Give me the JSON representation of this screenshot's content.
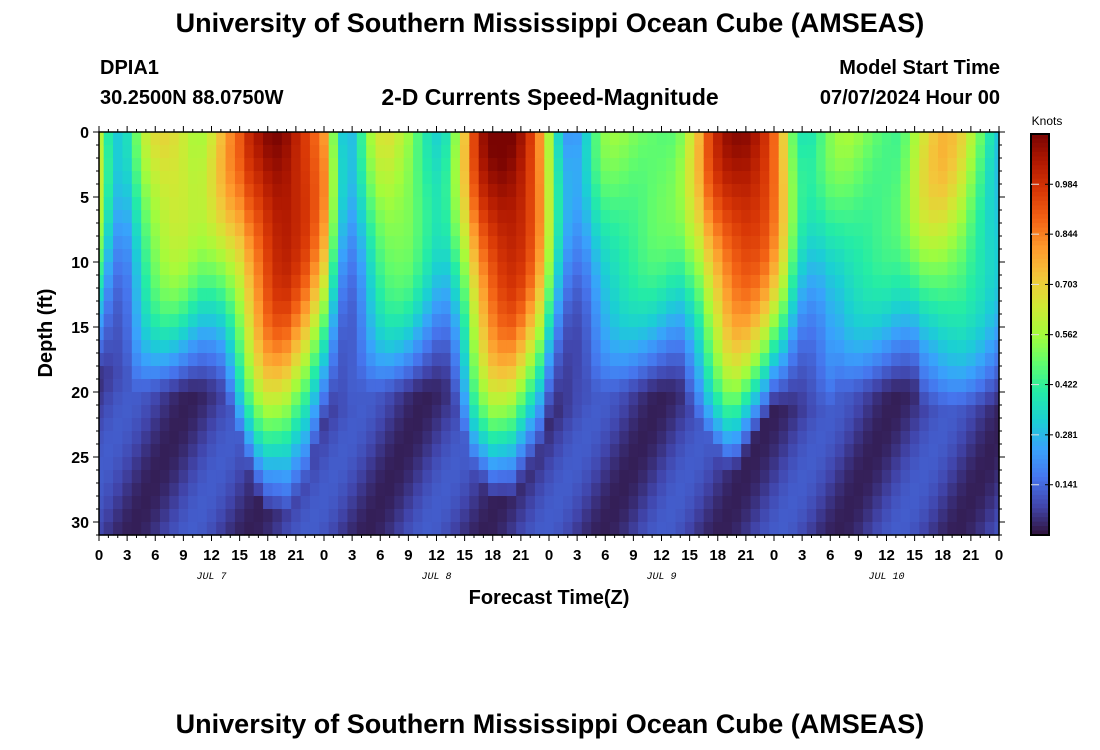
{
  "header": {
    "title": "University of Southern Mississippi Ocean Cube (AMSEAS)",
    "station_id": "DPIA1",
    "station_coords": "30.2500N  88.0750W",
    "chart_title": "2-D Currents Speed-Magnitude",
    "model_start_label": "Model Start Time",
    "model_start_value": "07/07/2024 Hour 00"
  },
  "footer": {
    "title": "University of Southern Mississippi Ocean Cube (AMSEAS)"
  },
  "chart_data": {
    "type": "heatmap",
    "title": "2-D Currents Speed-Magnitude",
    "xlabel": "Forecast Time(Z)",
    "ylabel": "Depth (ft)",
    "x_range_hours": [
      0,
      96
    ],
    "x_step_hours": 1,
    "x_tick_labels": [
      "0",
      "3",
      "6",
      "9",
      "12",
      "15",
      "18",
      "21",
      "0",
      "3",
      "6",
      "9",
      "12",
      "15",
      "18",
      "21",
      "0",
      "3",
      "6",
      "9",
      "12",
      "15",
      "18",
      "21",
      "0",
      "3",
      "6",
      "9",
      "12",
      "15",
      "18",
      "21",
      "0"
    ],
    "x_tick_step_hours": 3,
    "date_labels": [
      {
        "label": "JUL 7",
        "hour": 12
      },
      {
        "label": "JUL 8",
        "hour": 36
      },
      {
        "label": "JUL 9",
        "hour": 60
      },
      {
        "label": "JUL 10",
        "hour": 84
      }
    ],
    "y_range_ft": [
      0,
      31
    ],
    "y_reversed": true,
    "y_ticks": [
      0,
      5,
      10,
      15,
      20,
      25,
      30
    ],
    "colorbar": {
      "label": "Knots",
      "range": [
        0,
        1.125
      ],
      "tick_values": [
        0.141,
        0.281,
        0.422,
        0.562,
        0.703,
        0.844,
        0.984
      ],
      "tick_labels": [
        "0.141",
        "0.281",
        "0.422",
        "0.562",
        "0.703",
        "0.844",
        "0.984"
      ],
      "colors": [
        "#30123b",
        "#4145ab",
        "#4675ed",
        "#39a2fc",
        "#1bcfd4",
        "#24eca6",
        "#61fc6c",
        "#a4fc3b",
        "#d1e834",
        "#f3c63a",
        "#fe9b2d",
        "#f36315",
        "#d93806",
        "#b11901",
        "#7a0402"
      ]
    },
    "surface_speed_knots_by_hour": [
      0.52,
      0.3,
      0.2,
      0.24,
      0.38,
      0.52,
      0.6,
      0.64,
      0.64,
      0.61,
      0.56,
      0.54,
      0.58,
      0.65,
      0.72,
      0.78,
      0.88,
      0.95,
      1.02,
      1.06,
      1.05,
      1.0,
      0.94,
      0.86,
      0.76,
      0.45,
      0.22,
      0.18,
      0.3,
      0.45,
      0.55,
      0.58,
      0.56,
      0.52,
      0.44,
      0.36,
      0.3,
      0.32,
      0.45,
      0.62,
      0.82,
      0.96,
      1.03,
      1.07,
      1.07,
      1.03,
      0.94,
      0.8,
      0.55,
      0.3,
      0.16,
      0.14,
      0.22,
      0.34,
      0.42,
      0.45,
      0.46,
      0.46,
      0.46,
      0.46,
      0.45,
      0.44,
      0.46,
      0.55,
      0.65,
      0.8,
      0.9,
      0.97,
      1.01,
      1.03,
      1.01,
      0.96,
      0.86,
      0.68,
      0.45,
      0.32,
      0.3,
      0.34,
      0.4,
      0.44,
      0.46,
      0.46,
      0.45,
      0.44,
      0.43,
      0.42,
      0.45,
      0.52,
      0.58,
      0.62,
      0.64,
      0.62,
      0.58,
      0.5,
      0.42,
      0.34,
      0.28
    ],
    "vertical_decay_scale_ft_by_hour": [
      16,
      16,
      16,
      16,
      17,
      17,
      17,
      17,
      17,
      17,
      17,
      17,
      17,
      17,
      18,
      20,
      22,
      24,
      25,
      25,
      25,
      24,
      23,
      21,
      19,
      18,
      18,
      18,
      17,
      17,
      17,
      17,
      17,
      17,
      17,
      17,
      17,
      17,
      18,
      20,
      22,
      23,
      24,
      24,
      24,
      23,
      22,
      21,
      19,
      18,
      18,
      18,
      17,
      17,
      17,
      17,
      17,
      17,
      17,
      17,
      17,
      17,
      17,
      18,
      19,
      20,
      21,
      22,
      22,
      21,
      20,
      19,
      18,
      18,
      18,
      18,
      18,
      18,
      18,
      17,
      17,
      17,
      17,
      17,
      17,
      17,
      17,
      17,
      18,
      18,
      18,
      18,
      18,
      18,
      18,
      18,
      18
    ]
  }
}
